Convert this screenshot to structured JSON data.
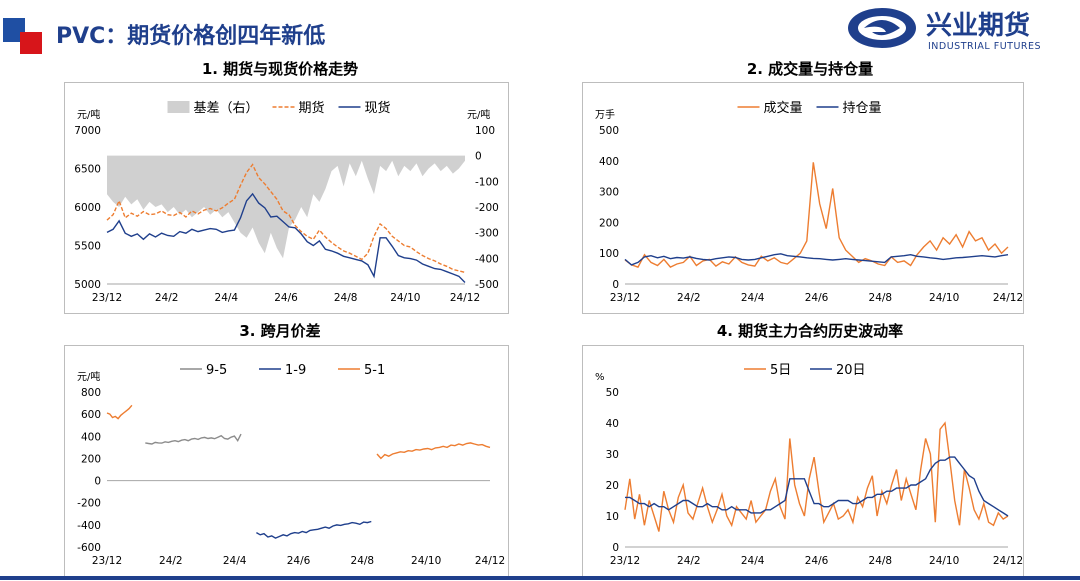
{
  "header": {
    "title": "PVC：期货价格创四年新低",
    "logo_cn": "兴业期货",
    "logo_en": "INDUSTRIAL FUTURES",
    "brand_blue": "#1f3f8c",
    "brand_red": "#d7151a"
  },
  "chart_data": [
    {
      "id": "c1",
      "type": "line",
      "title": "1. 期货与现货价格走势",
      "left_unit": "元/吨",
      "right_unit": "元/吨",
      "x_ticks": [
        "23/12",
        "24/2",
        "24/4",
        "24/6",
        "24/8",
        "24/10",
        "24/12"
      ],
      "ylim": [
        5000,
        7000
      ],
      "y_ticks": [
        5000,
        5500,
        6000,
        6500,
        7000
      ],
      "y2lim": [
        -500,
        100
      ],
      "y2_ticks": [
        -500,
        -400,
        -300,
        -200,
        -100,
        0,
        100
      ],
      "legend_position": "top",
      "series": [
        {
          "name": "基差（右）",
          "kind": "area",
          "axis": "right",
          "color": "#d0d0d0",
          "values": [
            -150,
            -180,
            -200,
            -160,
            -190,
            -170,
            -210,
            -180,
            -200,
            -190,
            -220,
            -200,
            -230,
            -210,
            -240,
            -220,
            -200,
            -230,
            -210,
            -240,
            -220,
            -260,
            -300,
            -320,
            -280,
            -340,
            -380,
            -300,
            -360,
            -400,
            -280,
            -250,
            -200,
            -240,
            -150,
            -180,
            -130,
            -60,
            -40,
            -120,
            -30,
            -80,
            -20,
            -90,
            -150,
            -40,
            -60,
            -20,
            -80,
            -40,
            -60,
            -30,
            -80,
            -50,
            -30,
            -60,
            -40,
            -70,
            -50,
            -20
          ]
        },
        {
          "name": "期货",
          "kind": "dashed",
          "axis": "left",
          "color": "#ed7d31",
          "values": [
            5830,
            5900,
            6080,
            5860,
            5920,
            5880,
            5940,
            5900,
            5910,
            5950,
            5900,
            5890,
            5930,
            5870,
            5950,
            5910,
            5960,
            5980,
            5950,
            5990,
            6050,
            6100,
            6280,
            6450,
            6550,
            6380,
            6300,
            6200,
            6100,
            5950,
            5900,
            5760,
            5680,
            5620,
            5580,
            5700,
            5610,
            5540,
            5480,
            5430,
            5400,
            5360,
            5320,
            5400,
            5620,
            5780,
            5720,
            5620,
            5560,
            5500,
            5480,
            5420,
            5370,
            5330,
            5300,
            5260,
            5230,
            5190,
            5170,
            5150
          ]
        },
        {
          "name": "现货",
          "kind": "solid",
          "axis": "left",
          "color": "#1f3f8c",
          "values": [
            5670,
            5710,
            5820,
            5660,
            5620,
            5650,
            5580,
            5650,
            5610,
            5660,
            5630,
            5620,
            5680,
            5660,
            5710,
            5680,
            5700,
            5720,
            5710,
            5670,
            5690,
            5700,
            5860,
            6080,
            6170,
            6050,
            5990,
            5870,
            5880,
            5810,
            5740,
            5730,
            5650,
            5550,
            5500,
            5560,
            5450,
            5430,
            5400,
            5360,
            5340,
            5320,
            5300,
            5250,
            5100,
            5600,
            5600,
            5490,
            5370,
            5340,
            5330,
            5310,
            5260,
            5230,
            5200,
            5190,
            5160,
            5130,
            5100,
            5020
          ]
        }
      ]
    },
    {
      "id": "c2",
      "type": "line",
      "title": "2. 成交量与持仓量",
      "left_unit": "万手",
      "x_ticks": [
        "23/12",
        "24/2",
        "24/4",
        "24/6",
        "24/8",
        "24/10",
        "24/12"
      ],
      "ylim": [
        0,
        500
      ],
      "y_ticks": [
        0,
        100,
        200,
        300,
        400,
        500
      ],
      "legend_position": "top",
      "series": [
        {
          "name": "成交量",
          "color": "#ed7d31",
          "values": [
            78,
            62,
            55,
            95,
            70,
            60,
            80,
            55,
            65,
            70,
            90,
            60,
            75,
            80,
            58,
            72,
            65,
            88,
            70,
            62,
            58,
            90,
            75,
            85,
            70,
            65,
            82,
            100,
            140,
            395,
            260,
            180,
            310,
            150,
            110,
            90,
            70,
            82,
            75,
            65,
            60,
            88,
            70,
            75,
            60,
            95,
            120,
            140,
            110,
            150,
            130,
            160,
            120,
            170,
            140,
            150,
            110,
            130,
            100,
            120
          ]
        },
        {
          "name": "持仓量",
          "color": "#1f3f8c",
          "values": [
            80,
            62,
            70,
            88,
            92,
            85,
            90,
            82,
            86,
            84,
            88,
            83,
            80,
            78,
            82,
            85,
            88,
            86,
            80,
            78,
            80,
            85,
            90,
            95,
            98,
            92,
            90,
            88,
            85,
            83,
            82,
            80,
            78,
            80,
            82,
            80,
            78,
            76,
            74,
            72,
            70,
            88,
            90,
            92,
            95,
            90,
            88,
            85,
            83,
            80,
            82,
            85,
            86,
            88,
            90,
            92,
            90,
            88,
            92,
            95
          ]
        }
      ]
    },
    {
      "id": "c3",
      "type": "line",
      "title": "3. 跨月价差",
      "left_unit": "元/吨",
      "x_ticks": [
        "23/12",
        "24/2",
        "24/4",
        "24/6",
        "24/8",
        "24/10",
        "24/12"
      ],
      "ylim": [
        -600,
        800
      ],
      "y_ticks": [
        -600,
        -400,
        -200,
        0,
        200,
        400,
        600,
        800
      ],
      "legend_position": "top",
      "series": [
        {
          "name": "9-5",
          "color": "#8c8c8c",
          "x_range": [
            0.1,
            0.35
          ],
          "values": [
            340,
            335,
            330,
            345,
            340,
            338,
            350,
            345,
            355,
            360,
            352,
            365,
            370,
            360,
            375,
            380,
            372,
            385,
            390,
            380,
            385,
            378,
            392,
            405,
            380,
            375,
            392,
            402,
            360,
            420
          ]
        },
        {
          "name": "1-9",
          "color": "#1f3f8c",
          "x_range": [
            0.39,
            0.69
          ],
          "values": [
            -470,
            -490,
            -480,
            -510,
            -500,
            -520,
            -505,
            -490,
            -500,
            -480,
            -470,
            -475,
            -460,
            -470,
            -450,
            -445,
            -440,
            -430,
            -420,
            -430,
            -410,
            -400,
            -405,
            -395,
            -390,
            -380,
            -385,
            -395,
            -375,
            -380,
            -370
          ]
        },
        {
          "name": "5-1",
          "color": "#ed7d31",
          "segments": [
            {
              "x_range": [
                0.0,
                0.065
              ],
              "values": [
                610,
                600,
                570,
                580,
                560,
                590,
                610,
                630,
                650,
                680
              ]
            },
            {
              "x_range": [
                0.705,
                1.0
              ],
              "values": [
                240,
                200,
                235,
                220,
                240,
                250,
                260,
                255,
                270,
                265,
                280,
                275,
                285,
                290,
                280,
                295,
                300,
                310,
                300,
                320,
                315,
                330,
                320,
                335,
                340,
                330,
                320,
                325,
                310,
                300
              ]
            }
          ]
        }
      ]
    },
    {
      "id": "c4",
      "type": "line",
      "title": "4. 期货主力合约历史波动率",
      "left_unit": "%",
      "x_ticks": [
        "23/12",
        "24/2",
        "24/4",
        "24/6",
        "24/8",
        "24/10",
        "24/12"
      ],
      "ylim": [
        0,
        50
      ],
      "y_ticks": [
        0,
        10,
        20,
        30,
        40,
        50
      ],
      "legend_position": "top",
      "series": [
        {
          "name": "5日",
          "color": "#ed7d31",
          "values": [
            12,
            22,
            9,
            17,
            7,
            15,
            10,
            5,
            18,
            12,
            8,
            16,
            20,
            11,
            9,
            14,
            19,
            13,
            8,
            12,
            17,
            10,
            7,
            13,
            11,
            9,
            15,
            8,
            10,
            12,
            18,
            22,
            13,
            9,
            35,
            20,
            14,
            10,
            22,
            29,
            18,
            8,
            11,
            14,
            9,
            10,
            12,
            8,
            16,
            13,
            19,
            23,
            10,
            18,
            14,
            20,
            25,
            15,
            22,
            17,
            12,
            25,
            35,
            30,
            8,
            38,
            40,
            28,
            15,
            7,
            25,
            19,
            12,
            9,
            14,
            8,
            7,
            11,
            9,
            10
          ]
        },
        {
          "name": "20日",
          "color": "#1f3f8c",
          "values": [
            16,
            16,
            15,
            14,
            14,
            13,
            14,
            13,
            13,
            12,
            13,
            14,
            15,
            15,
            14,
            13,
            13,
            14,
            13,
            13,
            12,
            12,
            13,
            12,
            12,
            12,
            11,
            11,
            11,
            12,
            12,
            13,
            14,
            15,
            22,
            22,
            22,
            22,
            18,
            14,
            14,
            13,
            13,
            14,
            15,
            15,
            15,
            14,
            14,
            15,
            16,
            16,
            17,
            17,
            18,
            18,
            19,
            19,
            19,
            20,
            20,
            21,
            22,
            25,
            27,
            28,
            28,
            29,
            29,
            27,
            25,
            23,
            22,
            18,
            15,
            14,
            13,
            12,
            11,
            10
          ]
        }
      ]
    }
  ]
}
